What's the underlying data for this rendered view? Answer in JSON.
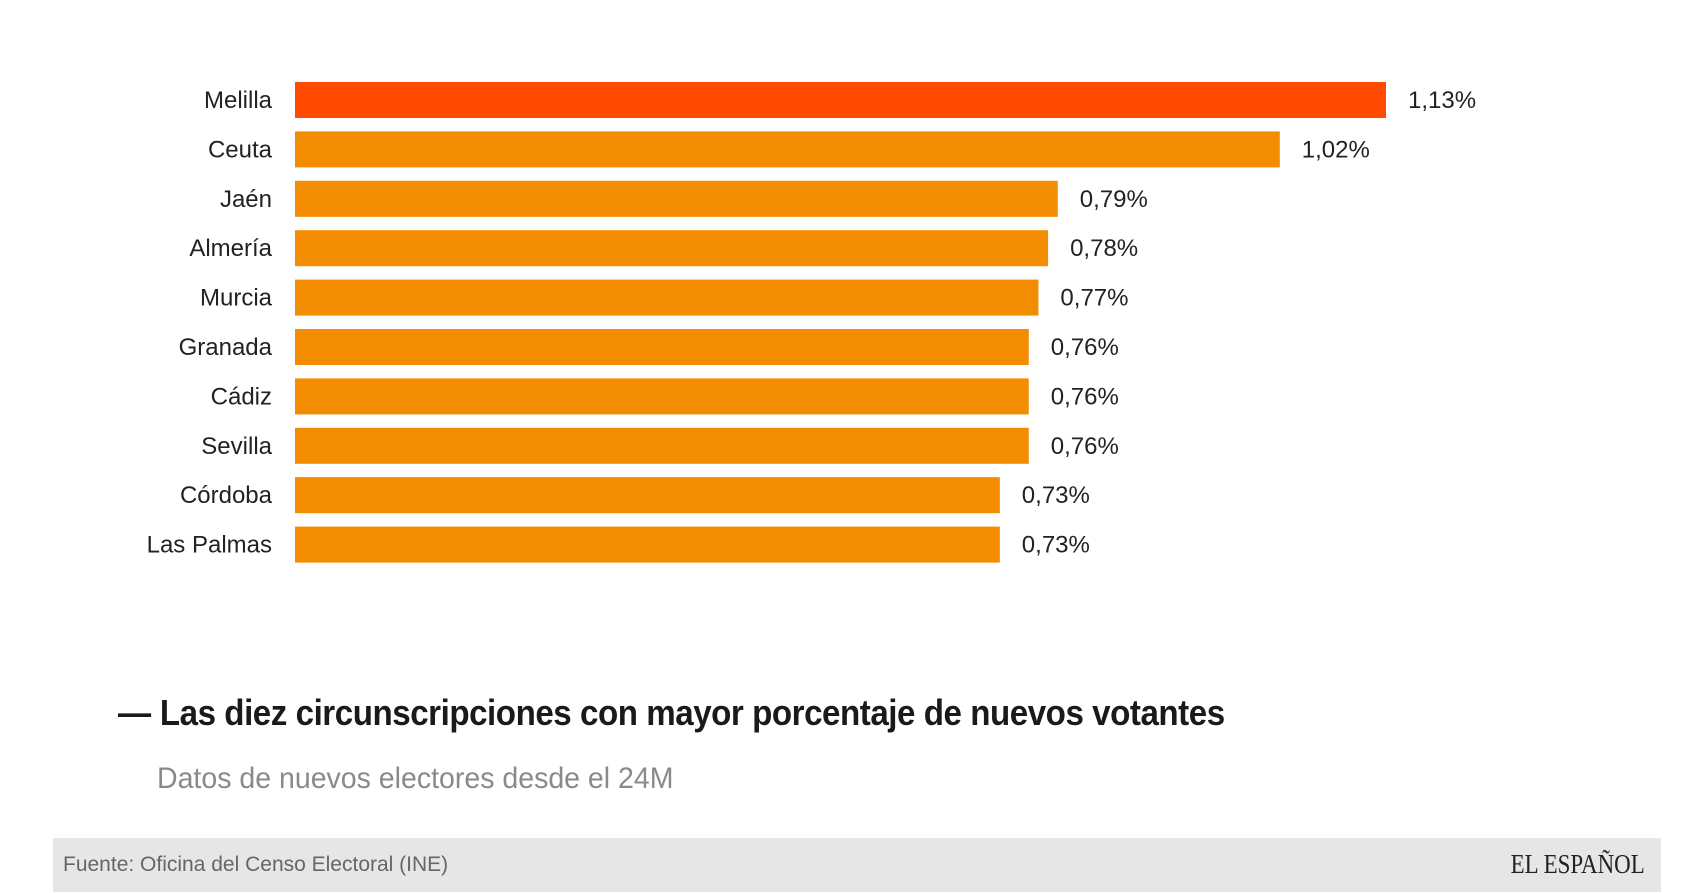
{
  "chart_data": {
    "type": "bar",
    "orientation": "horizontal",
    "title": "Las diez circunscripciones con mayor porcentaje de nuevos votantes",
    "subtitle": "Datos de nuevos electores desde el 24M",
    "xlabel": "",
    "ylabel": "",
    "categories": [
      "Melilla",
      "Ceuta",
      "Jaén",
      "Almería",
      "Murcia",
      "Granada",
      "Cádiz",
      "Sevilla",
      "Córdoba",
      "Las Palmas"
    ],
    "values": [
      1.13,
      1.02,
      0.79,
      0.78,
      0.77,
      0.76,
      0.76,
      0.76,
      0.73,
      0.73
    ],
    "value_labels": [
      "1,13%",
      "1,02%",
      "0,79%",
      "0,78%",
      "0,77%",
      "0,76%",
      "0,76%",
      "0,76%",
      "0,73%",
      "0,73%"
    ],
    "unit": "%",
    "xlim": [
      0,
      1.13
    ],
    "grid": false,
    "legend": "none",
    "highlight_color": "#ff4a00",
    "bar_color": "#f28c00",
    "highlight_index": 0
  },
  "header": {
    "title_dash": "—",
    "title": "Las diez circunscripciones con mayor porcentaje de nuevos votantes",
    "subtitle": "Datos de nuevos electores desde el 24M"
  },
  "footer": {
    "source": "Fuente: Oficina del Censo Electoral (INE)",
    "brand": "EL ESPAÑOL"
  }
}
